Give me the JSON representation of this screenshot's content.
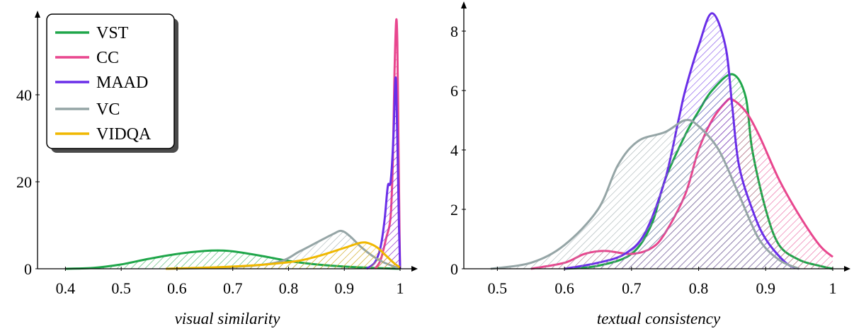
{
  "chart_data": [
    {
      "type": "area",
      "xlabel": "visual similarity",
      "ylabel": "",
      "xlim": [
        0.35,
        1.02
      ],
      "ylim": [
        0,
        55
      ],
      "xticks": [
        0.4,
        0.5,
        0.6,
        0.7,
        0.8,
        0.9,
        1
      ],
      "xtick_labels": [
        "0.4",
        "0.5",
        "0.6",
        "0.7",
        "0.8",
        "0.9",
        "1"
      ],
      "yticks": [
        0,
        20,
        40
      ],
      "ytick_labels": [
        "0",
        "20",
        "40"
      ],
      "legend_position": "top-left",
      "series": [
        {
          "name": "VST",
          "color": "#1fa64a",
          "points": [
            [
              0.4,
              0.0
            ],
            [
              0.45,
              0.2
            ],
            [
              0.5,
              1.0
            ],
            [
              0.55,
              2.3
            ],
            [
              0.6,
              3.4
            ],
            [
              0.65,
              4.1
            ],
            [
              0.68,
              4.2
            ],
            [
              0.7,
              4.0
            ],
            [
              0.75,
              3.0
            ],
            [
              0.8,
              1.8
            ],
            [
              0.85,
              1.0
            ],
            [
              0.9,
              0.5
            ],
            [
              0.95,
              0.2
            ],
            [
              1.0,
              0.0
            ]
          ]
        },
        {
          "name": "CC",
          "color": "#e8468e",
          "points": [
            [
              0.955,
              0.0
            ],
            [
              0.965,
              2.0
            ],
            [
              0.975,
              7.0
            ],
            [
              0.983,
              12.0
            ],
            [
              0.987,
              25.0
            ],
            [
              0.99,
              45.0
            ],
            [
              0.993,
              57.0
            ],
            [
              0.995,
              52.0
            ],
            [
              0.997,
              30.0
            ],
            [
              0.999,
              8.0
            ],
            [
              1.0,
              0.0
            ]
          ]
        },
        {
          "name": "MAAD",
          "color": "#6a2ee8",
          "points": [
            [
              0.94,
              0.0
            ],
            [
              0.955,
              1.5
            ],
            [
              0.965,
              5.0
            ],
            [
              0.972,
              11.0
            ],
            [
              0.978,
              19.0
            ],
            [
              0.983,
              20.0
            ],
            [
              0.988,
              30.0
            ],
            [
              0.992,
              44.0
            ],
            [
              0.995,
              30.0
            ],
            [
              0.998,
              10.0
            ],
            [
              1.0,
              0.0
            ]
          ]
        },
        {
          "name": "VC",
          "color": "#95a5a6",
          "points": [
            [
              0.58,
              0.0
            ],
            [
              0.7,
              0.4
            ],
            [
              0.78,
              1.5
            ],
            [
              0.82,
              4.0
            ],
            [
              0.85,
              6.0
            ],
            [
              0.88,
              8.0
            ],
            [
              0.895,
              8.7
            ],
            [
              0.91,
              7.5
            ],
            [
              0.93,
              5.0
            ],
            [
              0.95,
              3.0
            ],
            [
              0.97,
              1.5
            ],
            [
              1.0,
              0.0
            ]
          ]
        },
        {
          "name": "VIDQA",
          "color": "#f0b800",
          "points": [
            [
              0.58,
              0.0
            ],
            [
              0.7,
              0.5
            ],
            [
              0.8,
              1.5
            ],
            [
              0.85,
              2.8
            ],
            [
              0.9,
              4.8
            ],
            [
              0.93,
              6.0
            ],
            [
              0.945,
              5.8
            ],
            [
              0.96,
              4.8
            ],
            [
              0.975,
              3.0
            ],
            [
              0.99,
              1.2
            ],
            [
              1.0,
              0.3
            ]
          ]
        }
      ]
    },
    {
      "type": "area",
      "xlabel": "textual consistency",
      "ylabel": "",
      "xlim": [
        0.45,
        1.02
      ],
      "ylim": [
        0,
        8.8
      ],
      "xticks": [
        0.5,
        0.6,
        0.7,
        0.8,
        0.9,
        1
      ],
      "xtick_labels": [
        "0.5",
        "0.6",
        "0.7",
        "0.8",
        "0.9",
        "1"
      ],
      "yticks": [
        0,
        2,
        4,
        6,
        8
      ],
      "ytick_labels": [
        "0",
        "2",
        "4",
        "6",
        "8"
      ],
      "series": [
        {
          "name": "VST",
          "color": "#1fa64a",
          "points": [
            [
              0.6,
              0.0
            ],
            [
              0.65,
              0.1
            ],
            [
              0.7,
              0.5
            ],
            [
              0.73,
              1.5
            ],
            [
              0.75,
              3.0
            ],
            [
              0.78,
              4.5
            ],
            [
              0.8,
              5.3
            ],
            [
              0.82,
              6.0
            ],
            [
              0.85,
              6.55
            ],
            [
              0.87,
              5.8
            ],
            [
              0.88,
              4.0
            ],
            [
              0.9,
              2.0
            ],
            [
              0.92,
              0.8
            ],
            [
              0.95,
              0.3
            ],
            [
              0.98,
              0.1
            ],
            [
              1.0,
              0.0
            ]
          ]
        },
        {
          "name": "CC",
          "color": "#e8468e",
          "points": [
            [
              0.55,
              0.0
            ],
            [
              0.6,
              0.2
            ],
            [
              0.63,
              0.5
            ],
            [
              0.66,
              0.6
            ],
            [
              0.7,
              0.5
            ],
            [
              0.73,
              0.7
            ],
            [
              0.75,
              1.2
            ],
            [
              0.78,
              2.5
            ],
            [
              0.8,
              4.0
            ],
            [
              0.82,
              5.0
            ],
            [
              0.84,
              5.6
            ],
            [
              0.85,
              5.7
            ],
            [
              0.87,
              5.3
            ],
            [
              0.89,
              4.5
            ],
            [
              0.92,
              3.0
            ],
            [
              0.95,
              1.8
            ],
            [
              0.98,
              0.8
            ],
            [
              1.0,
              0.4
            ]
          ]
        },
        {
          "name": "MAAD",
          "color": "#6a2ee8",
          "points": [
            [
              0.6,
              0.0
            ],
            [
              0.65,
              0.2
            ],
            [
              0.69,
              0.5
            ],
            [
              0.72,
              1.2
            ],
            [
              0.75,
              3.0
            ],
            [
              0.77,
              5.0
            ],
            [
              0.78,
              6.0
            ],
            [
              0.8,
              7.5
            ],
            [
              0.82,
              8.6
            ],
            [
              0.84,
              7.5
            ],
            [
              0.85,
              5.5
            ],
            [
              0.86,
              3.5
            ],
            [
              0.88,
              2.0
            ],
            [
              0.9,
              1.0
            ],
            [
              0.93,
              0.2
            ],
            [
              0.95,
              0.0
            ]
          ]
        },
        {
          "name": "VC",
          "color": "#95a5a6",
          "points": [
            [
              0.49,
              0.0
            ],
            [
              0.55,
              0.2
            ],
            [
              0.6,
              0.8
            ],
            [
              0.65,
              2.0
            ],
            [
              0.68,
              3.5
            ],
            [
              0.71,
              4.3
            ],
            [
              0.75,
              4.6
            ],
            [
              0.78,
              5.0
            ],
            [
              0.8,
              4.8
            ],
            [
              0.83,
              4.0
            ],
            [
              0.86,
              2.5
            ],
            [
              0.89,
              1.0
            ],
            [
              0.92,
              0.3
            ],
            [
              0.95,
              0.0
            ]
          ]
        }
      ]
    }
  ],
  "legend": [
    {
      "label": "VST",
      "color": "#1fa64a"
    },
    {
      "label": "CC",
      "color": "#e8468e"
    },
    {
      "label": "MAAD",
      "color": "#6a2ee8"
    },
    {
      "label": "VC",
      "color": "#95a5a6"
    },
    {
      "label": "VIDQA",
      "color": "#f0b800"
    }
  ]
}
